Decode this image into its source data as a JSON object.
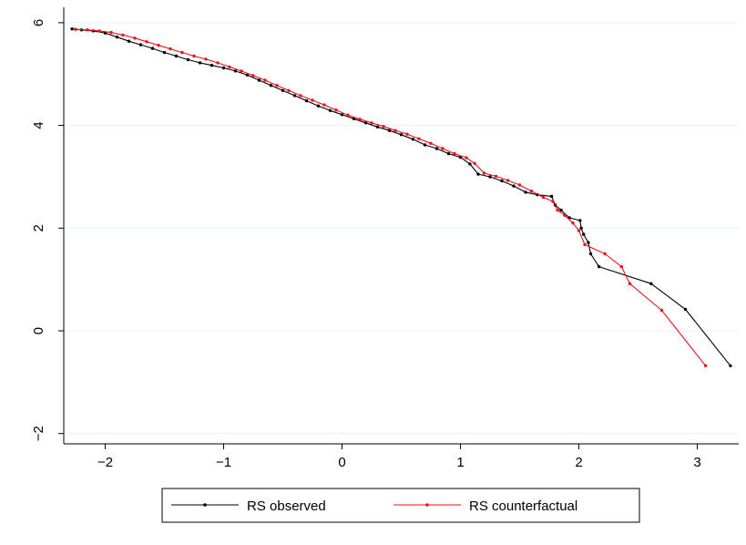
{
  "chart_data": {
    "type": "line",
    "title": "",
    "xlabel": "",
    "ylabel": "",
    "xlim": [
      -2.35,
      3.35
    ],
    "ylim": [
      -2.2,
      6.3
    ],
    "x_ticks": [
      -2,
      -1,
      0,
      1,
      2,
      3
    ],
    "y_ticks": [
      -2,
      0,
      2,
      4,
      6
    ],
    "x_tick_labels": [
      "−2",
      "−1",
      "0",
      "1",
      "2",
      "3"
    ],
    "y_tick_labels": [
      "−2",
      "0",
      "2",
      "4",
      "6"
    ],
    "grid": "horizontal",
    "legend_position": "bottom",
    "series": [
      {
        "name": "RS observed",
        "color": "#000000",
        "x": [
          -2.28,
          -2.2,
          -2.1,
          -2.0,
          -1.9,
          -1.8,
          -1.7,
          -1.6,
          -1.5,
          -1.4,
          -1.3,
          -1.2,
          -1.1,
          -1.0,
          -0.9,
          -0.8,
          -0.7,
          -0.6,
          -0.5,
          -0.4,
          -0.3,
          -0.2,
          -0.1,
          0.0,
          0.1,
          0.2,
          0.3,
          0.4,
          0.5,
          0.6,
          0.7,
          0.8,
          0.9,
          1.0,
          1.08,
          1.15,
          1.25,
          1.35,
          1.45,
          1.55,
          1.65,
          1.77,
          1.8,
          1.85,
          1.92,
          2.01,
          2.02,
          2.04,
          2.08,
          2.1,
          2.17,
          2.61,
          2.9,
          3.28
        ],
        "y": [
          5.88,
          5.86,
          5.84,
          5.8,
          5.72,
          5.64,
          5.57,
          5.5,
          5.42,
          5.35,
          5.28,
          5.22,
          5.17,
          5.12,
          5.06,
          4.98,
          4.88,
          4.78,
          4.68,
          4.58,
          4.48,
          4.38,
          4.29,
          4.21,
          4.13,
          4.05,
          3.97,
          3.9,
          3.82,
          3.73,
          3.62,
          3.55,
          3.45,
          3.38,
          3.25,
          3.05,
          3.0,
          2.92,
          2.82,
          2.7,
          2.65,
          2.62,
          2.45,
          2.35,
          2.2,
          2.15,
          2.0,
          1.88,
          1.72,
          1.5,
          1.25,
          0.92,
          0.42,
          -0.68
        ]
      },
      {
        "name": "RS counterfactual",
        "color": "#e8141b",
        "x": [
          -2.25,
          -2.15,
          -2.05,
          -1.95,
          -1.85,
          -1.75,
          -1.65,
          -1.55,
          -1.45,
          -1.35,
          -1.25,
          -1.15,
          -1.05,
          -0.95,
          -0.85,
          -0.75,
          -0.65,
          -0.55,
          -0.45,
          -0.35,
          -0.25,
          -0.15,
          -0.05,
          0.05,
          0.15,
          0.25,
          0.35,
          0.45,
          0.55,
          0.65,
          0.75,
          0.85,
          0.95,
          1.05,
          1.12,
          1.2,
          1.3,
          1.4,
          1.5,
          1.6,
          1.7,
          1.78,
          1.82,
          1.88,
          1.95,
          2.0,
          2.05,
          2.22,
          2.36,
          2.43,
          2.7,
          3.07
        ],
        "y": [
          5.87,
          5.86,
          5.84,
          5.81,
          5.76,
          5.7,
          5.63,
          5.56,
          5.49,
          5.42,
          5.35,
          5.29,
          5.22,
          5.14,
          5.06,
          4.97,
          4.88,
          4.78,
          4.68,
          4.58,
          4.49,
          4.4,
          4.3,
          4.2,
          4.12,
          4.05,
          3.98,
          3.9,
          3.83,
          3.74,
          3.65,
          3.55,
          3.45,
          3.37,
          3.26,
          3.07,
          3.01,
          2.93,
          2.84,
          2.72,
          2.6,
          2.52,
          2.35,
          2.25,
          2.1,
          1.95,
          1.68,
          1.5,
          1.25,
          0.92,
          0.4,
          -0.68
        ]
      }
    ]
  }
}
